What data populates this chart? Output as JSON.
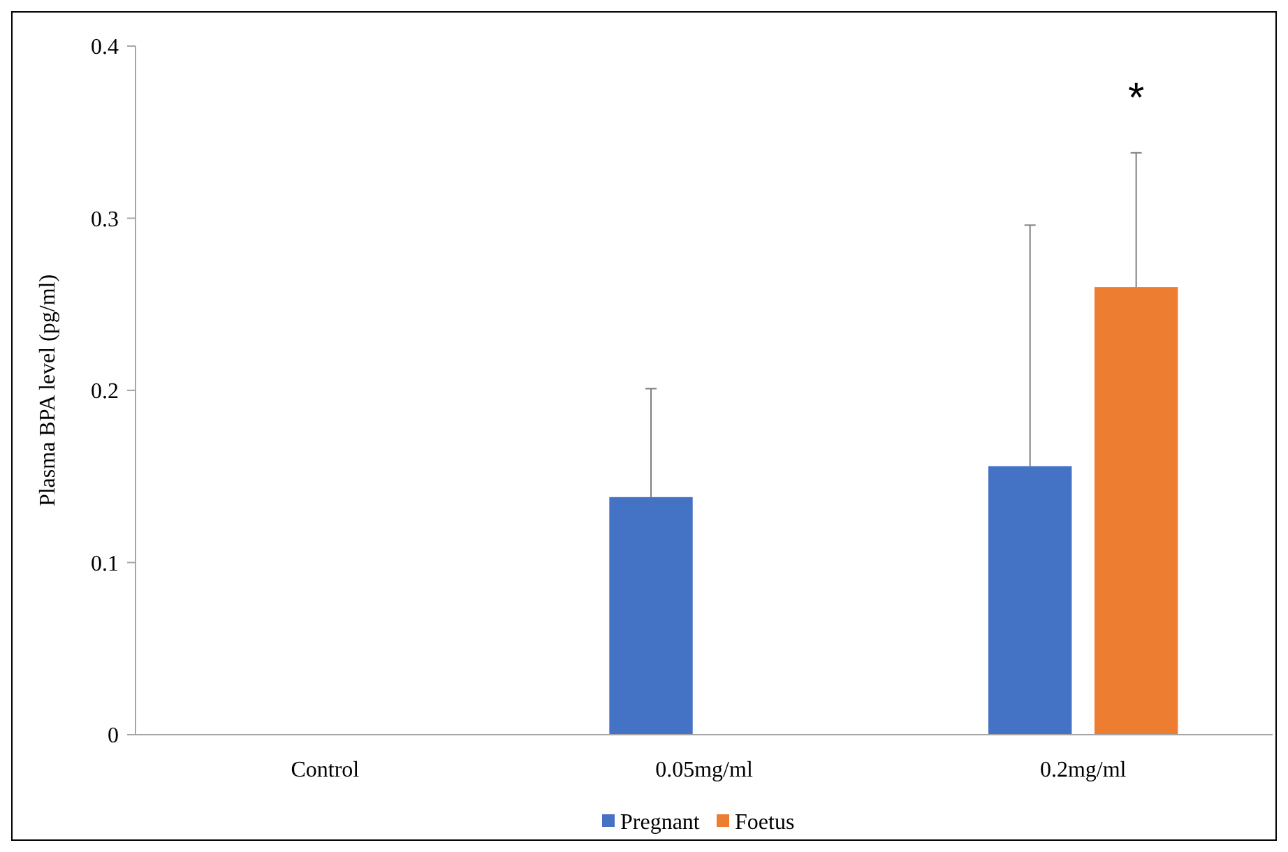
{
  "chart_data": {
    "type": "bar",
    "ylabel": "Plasma BPA level (pg/ml)",
    "categories": [
      "Control",
      "0.05mg/ml",
      "0.2mg/ml"
    ],
    "series": [
      {
        "name": "Pregnant",
        "color": "#4472c4",
        "values": [
          0,
          0.138,
          0.156
        ],
        "errors": [
          null,
          [
            0.138,
            0.201
          ],
          [
            0.156,
            0.296
          ]
        ]
      },
      {
        "name": "Foetus",
        "color": "#ed7d31",
        "values": [
          0,
          0,
          0.26
        ],
        "errors": [
          null,
          null,
          [
            0.26,
            0.338
          ]
        ]
      }
    ],
    "ylim": [
      0,
      0.4
    ],
    "yticks": [
      0,
      0.1,
      0.2,
      0.3,
      0.4
    ],
    "grid": false,
    "legend": "bottom",
    "annotations": [
      "*"
    ]
  }
}
